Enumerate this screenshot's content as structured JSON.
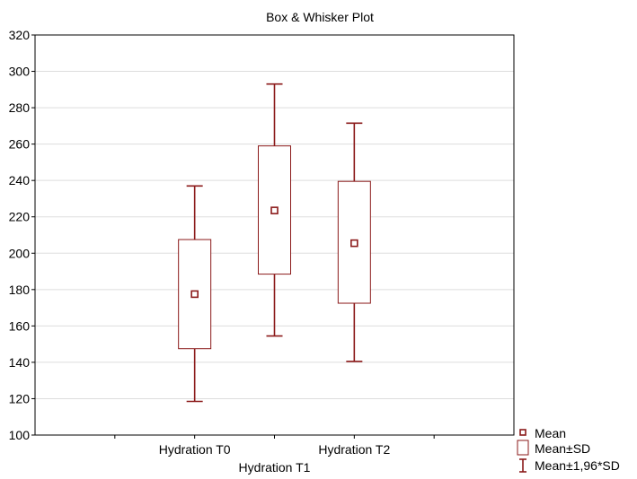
{
  "chart_data": {
    "type": "box",
    "title": "Box & Whisker Plot",
    "xlabel": "",
    "ylabel": "",
    "ylim": [
      100,
      320
    ],
    "yticks": [
      100,
      120,
      140,
      160,
      180,
      200,
      220,
      240,
      260,
      280,
      300,
      320
    ],
    "grid": true,
    "categories": [
      "Hydration T0",
      "Hydration T1",
      "Hydration T2"
    ],
    "series": [
      {
        "category": "Hydration T0",
        "mean": 177.5,
        "sd_low": 147.5,
        "sd_high": 207.5,
        "whisker_low": 118.5,
        "whisker_high": 237
      },
      {
        "category": "Hydration T1",
        "mean": 223.5,
        "sd_low": 188.5,
        "sd_high": 259,
        "whisker_low": 154.5,
        "whisker_high": 293
      },
      {
        "category": "Hydration T2",
        "mean": 205.5,
        "sd_low": 172.5,
        "sd_high": 239.5,
        "whisker_low": 140.5,
        "whisker_high": 271.5
      }
    ],
    "legend": {
      "placement": "bottom-right",
      "entries": [
        "Mean",
        "Mean±SD",
        "Mean±1,96*SD"
      ]
    },
    "colors": {
      "series": "#8b1a1a",
      "grid": "#dddddd",
      "axis": "#000000"
    }
  }
}
